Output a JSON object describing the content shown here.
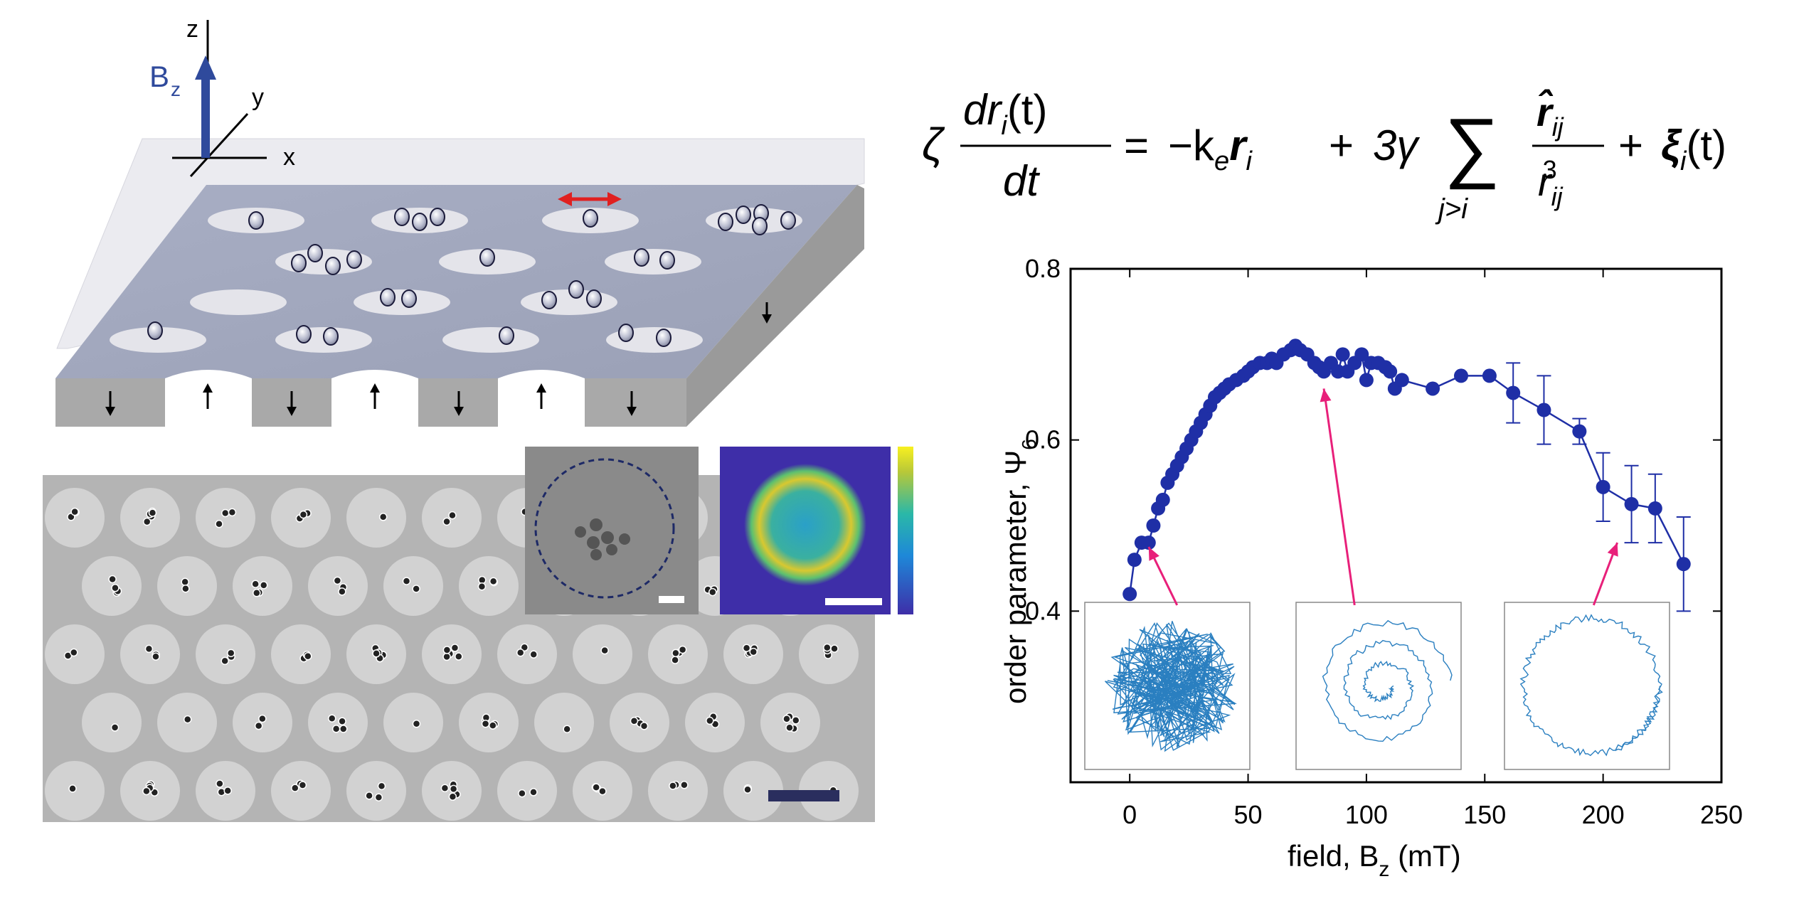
{
  "schematic": {
    "axis_labels": {
      "z": "z",
      "y": "y",
      "x": "x",
      "b": "B",
      "b_sub": "z"
    }
  },
  "equation": {
    "lhs_coef": "ζ",
    "num": "dr",
    "num_sub": "i",
    "num_arg": "(t)",
    "den": "dt",
    "equals": "=",
    "term1": "−k",
    "term1_sub": "e",
    "term1_r": "r",
    "term1_r_sub": "i",
    "plus": "+",
    "term2_coef": "3γ",
    "sum": "∑",
    "sum_index": "j>i",
    "frac_num": "r̂",
    "frac_num_sub": "ij",
    "frac_den": "r",
    "frac_den_sub": "ij",
    "frac_den_sup": "3",
    "term3": "ξ",
    "term3_sub": "i",
    "term3_arg": "(t)"
  },
  "chart_data": {
    "type": "scatter",
    "title": "",
    "xlabel": "field, B",
    "xlabel_sub": "z",
    "xlabel_unit": " (mT)",
    "ylabel": "order parameter,  Ψ",
    "ylabel_sub": "6",
    "xlim": [
      -25,
      250
    ],
    "ylim": [
      0.2,
      0.8
    ],
    "xticks": [
      0,
      50,
      100,
      150,
      200,
      250
    ],
    "yticks": [
      0.4,
      0.6,
      0.8
    ],
    "ytick_labels": [
      "0.4",
      "0.6",
      "0.8"
    ],
    "marker_color": "#1f2fa6",
    "arrow_color": "#e8207a",
    "inset_color": "#2a7fc0",
    "series": [
      {
        "points": [
          [
            0,
            0.42
          ],
          [
            2,
            0.46
          ],
          [
            5,
            0.48
          ],
          [
            8,
            0.48
          ],
          [
            10,
            0.5
          ],
          [
            12,
            0.52
          ],
          [
            14,
            0.53
          ],
          [
            16,
            0.55
          ],
          [
            18,
            0.56
          ],
          [
            20,
            0.57
          ],
          [
            22,
            0.58
          ],
          [
            24,
            0.59
          ],
          [
            26,
            0.6
          ],
          [
            28,
            0.61
          ],
          [
            30,
            0.62
          ],
          [
            32,
            0.63
          ],
          [
            34,
            0.64
          ],
          [
            36,
            0.65
          ],
          [
            38,
            0.655
          ],
          [
            40,
            0.66
          ],
          [
            42,
            0.665
          ],
          [
            45,
            0.67
          ],
          [
            48,
            0.675
          ],
          [
            50,
            0.68
          ],
          [
            52,
            0.685
          ],
          [
            55,
            0.69
          ],
          [
            58,
            0.69
          ],
          [
            60,
            0.695
          ],
          [
            62,
            0.69
          ],
          [
            65,
            0.7
          ],
          [
            68,
            0.705
          ],
          [
            70,
            0.71
          ],
          [
            72,
            0.705
          ],
          [
            75,
            0.7
          ],
          [
            78,
            0.69
          ],
          [
            80,
            0.685
          ],
          [
            82,
            0.68
          ],
          [
            85,
            0.69
          ],
          [
            88,
            0.68
          ],
          [
            90,
            0.7
          ],
          [
            92,
            0.68
          ],
          [
            95,
            0.69
          ],
          [
            98,
            0.7
          ],
          [
            100,
            0.67
          ],
          [
            102,
            0.69
          ],
          [
            105,
            0.69
          ],
          [
            108,
            0.685
          ],
          [
            110,
            0.68
          ],
          [
            112,
            0.66
          ],
          [
            115,
            0.67
          ],
          [
            128,
            0.66
          ],
          [
            140,
            0.675
          ],
          [
            152,
            0.675
          ],
          [
            162,
            0.655
          ],
          [
            175,
            0.635
          ],
          [
            190,
            0.61
          ],
          [
            200,
            0.545
          ],
          [
            212,
            0.525
          ],
          [
            222,
            0.52
          ],
          [
            234,
            0.455
          ]
        ],
        "errors": [
          [
            162,
            0.035
          ],
          [
            175,
            0.04
          ],
          [
            190,
            0.015
          ],
          [
            200,
            0.04
          ],
          [
            212,
            0.045
          ],
          [
            222,
            0.04
          ],
          [
            234,
            0.055
          ]
        ]
      }
    ]
  }
}
